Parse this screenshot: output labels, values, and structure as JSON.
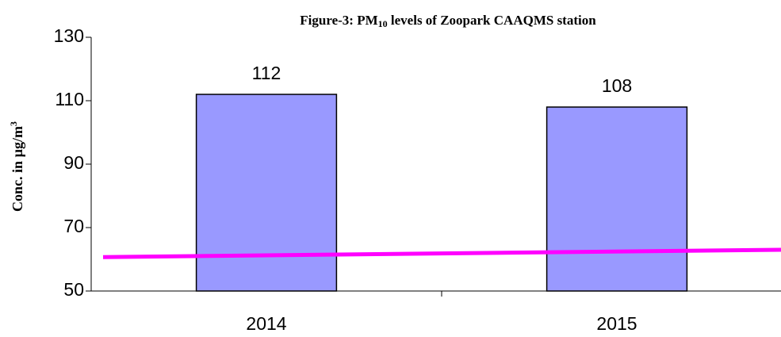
{
  "chart_data": {
    "type": "bar",
    "title": [
      "Figure-3: PM",
      "10",
      " levels of Zoopark CAAQMS station"
    ],
    "y_label": [
      "Conc. in µg/m",
      "3"
    ],
    "categories": [
      "2014",
      "2015"
    ],
    "values": [
      112,
      108
    ],
    "color": "#9999ff",
    "ylim": [
      50,
      130
    ],
    "yticks": [
      50,
      70,
      90,
      110,
      130
    ],
    "trend_line": {
      "color": "#ff00ff",
      "values": [
        60.7,
        63
      ]
    }
  }
}
